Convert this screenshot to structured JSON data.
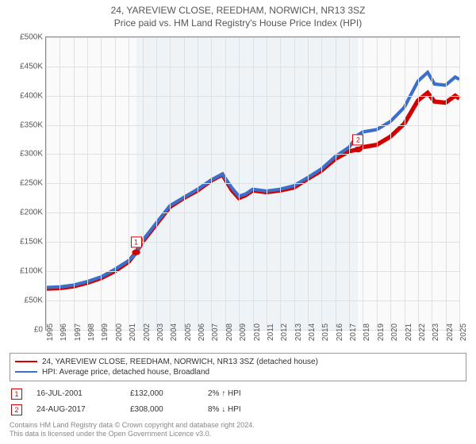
{
  "header": {
    "title": "24, YAREVIEW CLOSE, REEDHAM, NORWICH, NR13 3SZ",
    "subtitle": "Price paid vs. HM Land Registry's House Price Index (HPI)"
  },
  "chart": {
    "type": "line",
    "background_color": "#fafafa",
    "shade_color": "#eef3f8",
    "grid_color": "#e0e0e0",
    "border_color": "#888888",
    "x": {
      "min": 1995,
      "max": 2025,
      "ticks": [
        1995,
        1996,
        1997,
        1998,
        1999,
        2000,
        2001,
        2002,
        2003,
        2004,
        2005,
        2006,
        2007,
        2008,
        2009,
        2010,
        2011,
        2012,
        2013,
        2014,
        2015,
        2016,
        2017,
        2018,
        2019,
        2020,
        2021,
        2022,
        2023,
        2024,
        2025
      ],
      "label_fontsize": 10
    },
    "y": {
      "min": 0,
      "max": 500000,
      "tick_step": 50000,
      "tick_labels": [
        "£0",
        "£50K",
        "£100K",
        "£150K",
        "£200K",
        "£250K",
        "£300K",
        "£350K",
        "£400K",
        "£450K",
        "£500K"
      ],
      "label_fontsize": 10
    },
    "shaded_range": {
      "from": 2001.54,
      "to": 2017.65
    },
    "series": [
      {
        "id": "price_paid",
        "label": "24, YAREVIEW CLOSE, REEDHAM, NORWICH, NR13 3SZ (detached house)",
        "color": "#d40000",
        "line_width": 1.8,
        "data": [
          [
            1995.0,
            70000
          ],
          [
            1996.0,
            70800
          ],
          [
            1997.0,
            74000
          ],
          [
            1998.0,
            80000
          ],
          [
            1999.0,
            88000
          ],
          [
            2000.0,
            100000
          ],
          [
            2001.0,
            116000
          ],
          [
            2001.54,
            132000
          ],
          [
            2002.0,
            150000
          ],
          [
            2003.0,
            180000
          ],
          [
            2004.0,
            210000
          ],
          [
            2005.0,
            225000
          ],
          [
            2006.0,
            238000
          ],
          [
            2007.0,
            255000
          ],
          [
            2007.8,
            265000
          ],
          [
            2008.5,
            238000
          ],
          [
            2009.0,
            225000
          ],
          [
            2009.5,
            230000
          ],
          [
            2010.0,
            238000
          ],
          [
            2011.0,
            235000
          ],
          [
            2012.0,
            238000
          ],
          [
            2013.0,
            243000
          ],
          [
            2014.0,
            258000
          ],
          [
            2015.0,
            272000
          ],
          [
            2016.0,
            292000
          ],
          [
            2017.0,
            305000
          ],
          [
            2017.65,
            308000
          ],
          [
            2018.0,
            312000
          ],
          [
            2019.0,
            316000
          ],
          [
            2020.0,
            330000
          ],
          [
            2021.0,
            352000
          ],
          [
            2022.0,
            392000
          ],
          [
            2022.7,
            405000
          ],
          [
            2023.2,
            390000
          ],
          [
            2024.0,
            388000
          ],
          [
            2024.7,
            400000
          ],
          [
            2025.0,
            395000
          ]
        ]
      },
      {
        "id": "hpi",
        "label": "HPI: Average price, detached house, Broadland",
        "color": "#3b6fc9",
        "line_width": 1.4,
        "data": [
          [
            1995.0,
            72000
          ],
          [
            1996.0,
            73000
          ],
          [
            1997.0,
            76000
          ],
          [
            1998.0,
            82000
          ],
          [
            1999.0,
            90000
          ],
          [
            2000.0,
            103000
          ],
          [
            2001.0,
            118000
          ],
          [
            2001.54,
            130000
          ],
          [
            2002.0,
            152000
          ],
          [
            2003.0,
            182000
          ],
          [
            2004.0,
            212000
          ],
          [
            2005.0,
            226000
          ],
          [
            2006.0,
            240000
          ],
          [
            2007.0,
            256000
          ],
          [
            2007.8,
            266000
          ],
          [
            2008.5,
            242000
          ],
          [
            2009.0,
            228000
          ],
          [
            2009.5,
            232000
          ],
          [
            2010.0,
            240000
          ],
          [
            2011.0,
            237000
          ],
          [
            2012.0,
            240000
          ],
          [
            2013.0,
            246000
          ],
          [
            2014.0,
            260000
          ],
          [
            2015.0,
            275000
          ],
          [
            2016.0,
            296000
          ],
          [
            2017.0,
            312000
          ],
          [
            2017.65,
            333000
          ],
          [
            2018.0,
            338000
          ],
          [
            2019.0,
            342000
          ],
          [
            2020.0,
            356000
          ],
          [
            2021.0,
            380000
          ],
          [
            2022.0,
            425000
          ],
          [
            2022.7,
            440000
          ],
          [
            2023.2,
            420000
          ],
          [
            2024.0,
            418000
          ],
          [
            2024.7,
            432000
          ],
          [
            2025.0,
            428000
          ]
        ]
      }
    ],
    "markers": [
      {
        "n": "1",
        "x": 2001.54,
        "y": 132000
      },
      {
        "n": "2",
        "x": 2017.65,
        "y": 308000
      }
    ]
  },
  "legend": {
    "items": [
      {
        "color": "#d40000",
        "label": "24, YAREVIEW CLOSE, REEDHAM, NORWICH, NR13 3SZ (detached house)"
      },
      {
        "color": "#3b6fc9",
        "label": "HPI: Average price, detached house, Broadland"
      }
    ]
  },
  "transactions": [
    {
      "n": "1",
      "date": "16-JUL-2001",
      "price": "£132,000",
      "diff": "2% ↑ HPI"
    },
    {
      "n": "2",
      "date": "24-AUG-2017",
      "price": "£308,000",
      "diff": "8% ↓ HPI"
    }
  ],
  "footer": {
    "line1": "Contains HM Land Registry data © Crown copyright and database right 2024.",
    "line2": "This data is licensed under the Open Government Licence v3.0."
  }
}
